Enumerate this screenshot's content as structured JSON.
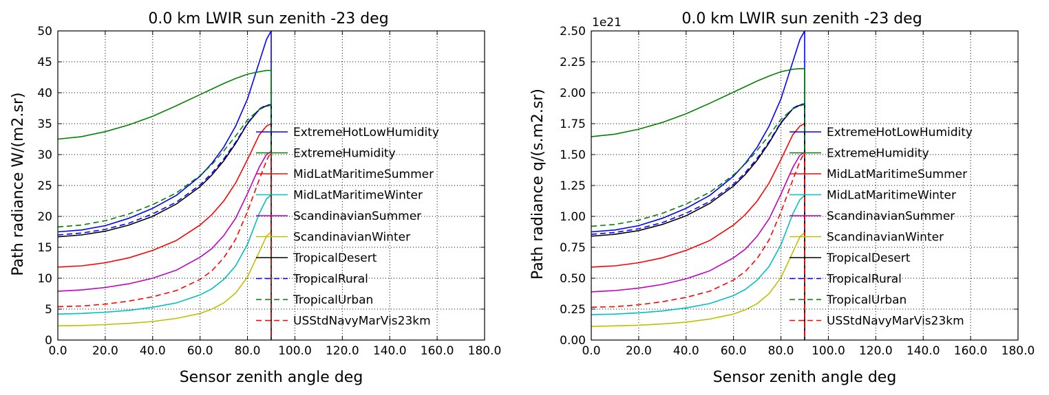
{
  "figure": {
    "left_panel": {
      "title": "0.0 km LWIR sun zenith -23 deg",
      "xlabel": "Sensor zenith angle deg",
      "ylabel": "Path radiance W/(m2.sr)"
    },
    "right_panel": {
      "title": "0.0 km LWIR sun zenith -23 deg",
      "xlabel": "Sensor zenith angle deg",
      "ylabel": "Path radiance q/(s.m2.sr)",
      "offset_text": "1e21"
    }
  },
  "chart_data": [
    {
      "type": "line",
      "title": "0.0 km LWIR sun zenith -23 deg",
      "xlabel": "Sensor zenith angle deg",
      "ylabel": "Path radiance W/(m2.sr)",
      "xlim": [
        0,
        180
      ],
      "ylim": [
        0,
        50
      ],
      "xticks": [
        0,
        20,
        40,
        60,
        80,
        100,
        120,
        140,
        160,
        180
      ],
      "xtick_labels": [
        "0.0",
        "20.0",
        "40.0",
        "60.0",
        "80.0",
        "100.0",
        "120.0",
        "140.0",
        "160.0",
        "180.0"
      ],
      "yticks": [
        0,
        5,
        10,
        15,
        20,
        25,
        30,
        35,
        40,
        45,
        50
      ],
      "ytick_labels": [
        "0",
        "5",
        "10",
        "15",
        "20",
        "25",
        "30",
        "35",
        "40",
        "45",
        "50"
      ],
      "grid": true,
      "legend_position": "center-right",
      "x": [
        0,
        10,
        20,
        30,
        40,
        50,
        60,
        65,
        70,
        75,
        80,
        85,
        88,
        90
      ],
      "series": [
        {
          "name": "ExtremeHotLowHumidity",
          "color": "#0000ff",
          "dash": "solid",
          "values": [
            17.5,
            17.8,
            18.5,
            19.7,
            21.3,
            23.4,
            26.5,
            28.6,
            31.2,
            34.6,
            39.0,
            45.0,
            48.6,
            50.0
          ]
        },
        {
          "name": "ExtremeHumidity",
          "color": "#008000",
          "dash": "solid",
          "values": [
            32.5,
            32.9,
            33.7,
            34.8,
            36.2,
            37.9,
            39.7,
            40.6,
            41.5,
            42.3,
            43.0,
            43.4,
            43.6,
            43.6
          ]
        },
        {
          "name": "MidLatMaritimeSummer",
          "color": "#ff0000",
          "dash": "solid",
          "values": [
            11.8,
            12.0,
            12.5,
            13.3,
            14.5,
            16.1,
            18.6,
            20.3,
            22.5,
            25.4,
            29.2,
            33.2,
            34.6,
            35.0
          ]
        },
        {
          "name": "MidLatMaritimeWinter",
          "color": "#00bfbf",
          "dash": "solid",
          "values": [
            4.2,
            4.3,
            4.5,
            4.8,
            5.3,
            6.0,
            7.3,
            8.3,
            9.8,
            12.0,
            15.5,
            20.5,
            22.8,
            23.5
          ]
        },
        {
          "name": "ScandinavianSummer",
          "color": "#bf00bf",
          "dash": "solid",
          "values": [
            7.9,
            8.1,
            8.5,
            9.1,
            10.0,
            11.3,
            13.4,
            14.8,
            16.9,
            19.7,
            23.7,
            28.0,
            30.0,
            30.5
          ]
        },
        {
          "name": "ScandinavianWinter",
          "color": "#bfbf00",
          "dash": "solid",
          "values": [
            2.3,
            2.35,
            2.5,
            2.7,
            3.0,
            3.5,
            4.3,
            5.0,
            6.0,
            7.6,
            10.2,
            14.3,
            16.8,
            17.5
          ]
        },
        {
          "name": "TropicalDesert",
          "color": "#000000",
          "dash": "solid",
          "values": [
            16.7,
            17.0,
            17.6,
            18.6,
            20.0,
            22.0,
            24.8,
            26.7,
            29.0,
            31.8,
            35.0,
            37.3,
            37.9,
            38.0
          ]
        },
        {
          "name": "TropicalRural",
          "color": "#0000ff",
          "dash": "dashed",
          "values": [
            17.0,
            17.3,
            17.9,
            18.9,
            20.4,
            22.3,
            25.1,
            27.0,
            29.3,
            32.0,
            35.1,
            37.4,
            38.0,
            38.1
          ]
        },
        {
          "name": "TropicalUrban",
          "color": "#008000",
          "dash": "dashed",
          "values": [
            18.3,
            18.6,
            19.3,
            20.4,
            21.9,
            23.8,
            26.6,
            28.4,
            30.6,
            33.0,
            35.6,
            37.3,
            37.8,
            38.0
          ]
        },
        {
          "name": "USStdNavyMarVis23km",
          "color": "#ff0000",
          "dash": "dashed",
          "values": [
            5.4,
            5.5,
            5.8,
            6.3,
            7.0,
            8.0,
            9.8,
            11.2,
            13.3,
            16.3,
            20.8,
            26.0,
            29.0,
            30.5
          ]
        }
      ]
    },
    {
      "type": "line",
      "title": "0.0 km LWIR sun zenith -23 deg",
      "xlabel": "Sensor zenith angle deg",
      "ylabel": "Path radiance q/(s.m2.sr)",
      "y_multiplier": "1e21",
      "xlim": [
        0,
        180
      ],
      "ylim": [
        0,
        2.5
      ],
      "xticks": [
        0,
        20,
        40,
        60,
        80,
        100,
        120,
        140,
        160,
        180
      ],
      "xtick_labels": [
        "0.0",
        "20.0",
        "40.0",
        "60.0",
        "80.0",
        "100.0",
        "120.0",
        "140.0",
        "160.0",
        "180.0"
      ],
      "yticks": [
        0,
        0.25,
        0.5,
        0.75,
        1.0,
        1.25,
        1.5,
        1.75,
        2.0,
        2.25,
        2.5
      ],
      "ytick_labels": [
        "0.00",
        "0.25",
        "0.50",
        "0.75",
        "1.00",
        "1.25",
        "1.50",
        "1.75",
        "2.00",
        "2.25",
        "2.50"
      ],
      "grid": true,
      "legend_position": "center-right",
      "x": [
        0,
        10,
        20,
        30,
        40,
        50,
        60,
        65,
        70,
        75,
        80,
        85,
        88,
        90
      ],
      "series": [
        {
          "name": "ExtremeHotLowHumidity",
          "color": "#0000ff",
          "dash": "solid",
          "values": [
            0.875,
            0.89,
            0.925,
            0.985,
            1.065,
            1.17,
            1.325,
            1.43,
            1.56,
            1.73,
            1.95,
            2.25,
            2.43,
            2.5
          ]
        },
        {
          "name": "ExtremeHumidity",
          "color": "#008000",
          "dash": "solid",
          "values": [
            1.645,
            1.665,
            1.705,
            1.76,
            1.83,
            1.915,
            2.005,
            2.05,
            2.095,
            2.135,
            2.17,
            2.19,
            2.195,
            2.195
          ]
        },
        {
          "name": "MidLatMaritimeSummer",
          "color": "#ff0000",
          "dash": "solid",
          "values": [
            0.59,
            0.6,
            0.625,
            0.665,
            0.725,
            0.805,
            0.93,
            1.015,
            1.125,
            1.27,
            1.46,
            1.66,
            1.73,
            1.75
          ]
        },
        {
          "name": "MidLatMaritimeWinter",
          "color": "#00bfbf",
          "dash": "solid",
          "values": [
            0.205,
            0.21,
            0.22,
            0.235,
            0.26,
            0.295,
            0.36,
            0.41,
            0.485,
            0.595,
            0.77,
            1.02,
            1.135,
            1.17
          ]
        },
        {
          "name": "ScandinavianSummer",
          "color": "#bf00bf",
          "dash": "solid",
          "values": [
            0.39,
            0.4,
            0.42,
            0.45,
            0.495,
            0.56,
            0.665,
            0.735,
            0.84,
            0.98,
            1.18,
            1.395,
            1.495,
            1.52
          ]
        },
        {
          "name": "ScandinavianWinter",
          "color": "#bfbf00",
          "dash": "solid",
          "values": [
            0.11,
            0.115,
            0.12,
            0.13,
            0.145,
            0.17,
            0.21,
            0.245,
            0.295,
            0.375,
            0.505,
            0.71,
            0.835,
            0.87
          ]
        },
        {
          "name": "TropicalDesert",
          "color": "#000000",
          "dash": "solid",
          "values": [
            0.84,
            0.855,
            0.885,
            0.935,
            1.005,
            1.105,
            1.245,
            1.34,
            1.455,
            1.595,
            1.755,
            1.87,
            1.9,
            1.905
          ]
        },
        {
          "name": "TropicalRural",
          "color": "#0000ff",
          "dash": "dashed",
          "values": [
            0.855,
            0.87,
            0.9,
            0.95,
            1.025,
            1.12,
            1.26,
            1.355,
            1.47,
            1.605,
            1.76,
            1.875,
            1.905,
            1.91
          ]
        },
        {
          "name": "TropicalUrban",
          "color": "#008000",
          "dash": "dashed",
          "values": [
            0.92,
            0.935,
            0.97,
            1.025,
            1.1,
            1.195,
            1.335,
            1.425,
            1.535,
            1.655,
            1.785,
            1.87,
            1.895,
            1.905
          ]
        },
        {
          "name": "USStdNavyMarVis23km",
          "color": "#ff0000",
          "dash": "dashed",
          "values": [
            0.265,
            0.27,
            0.285,
            0.31,
            0.345,
            0.395,
            0.485,
            0.555,
            0.66,
            0.81,
            1.035,
            1.295,
            1.445,
            1.52
          ]
        }
      ]
    }
  ]
}
